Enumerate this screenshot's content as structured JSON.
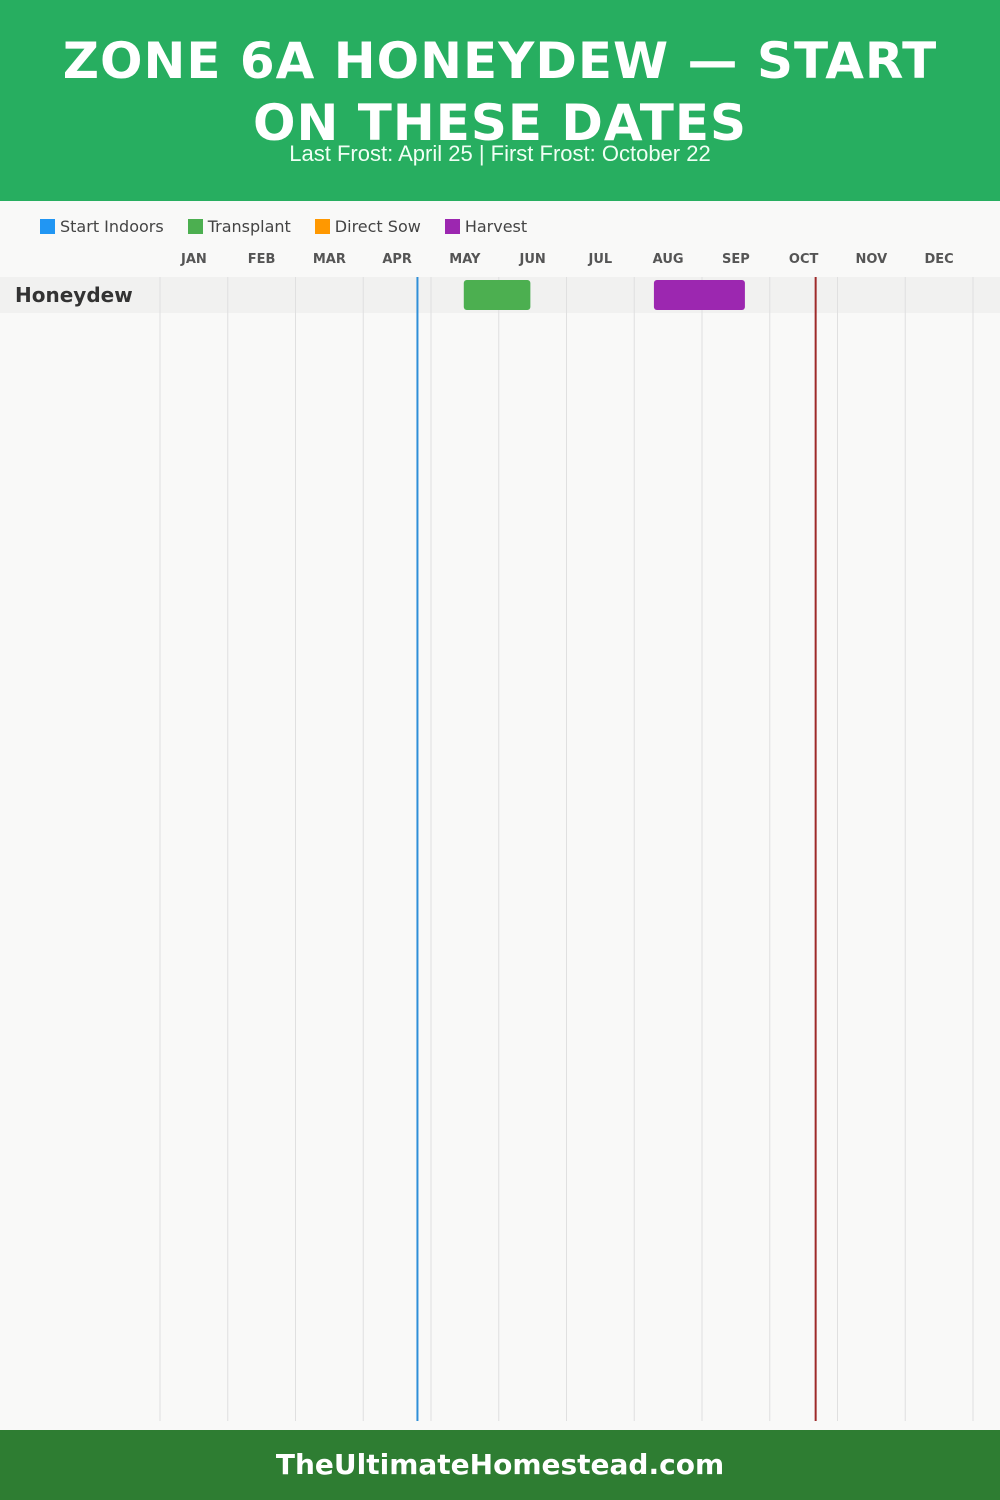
{
  "header": {
    "title": "Zone 6A Honeydew — Start on These Dates",
    "subtitle": "Last Frost: April 25 | First Frost: October 22",
    "background_color": "#27ae60"
  },
  "legend": [
    {
      "label": "Start Indoors",
      "color": "#2196f3"
    },
    {
      "label": "Transplant",
      "color": "#4caf50"
    },
    {
      "label": "Direct Sow",
      "color": "#ff9800"
    },
    {
      "label": "Harvest",
      "color": "#9c27b0"
    }
  ],
  "chart_data": {
    "type": "gantt",
    "months": [
      "JAN",
      "FEB",
      "MAR",
      "APR",
      "MAY",
      "JUN",
      "JUL",
      "AUG",
      "SEP",
      "OCT",
      "NOV",
      "DEC"
    ],
    "rows": [
      {
        "crop": "Honeydew",
        "bars": [
          {
            "activity": "Transplant",
            "start": "May 16",
            "end": "Jun 15",
            "color": "#4caf50"
          },
          {
            "activity": "Harvest",
            "start": "Aug 10",
            "end": "Sep 20",
            "color": "#9c27b0"
          }
        ]
      }
    ],
    "markers": [
      {
        "label": "Last Frost",
        "date": "Apr 25",
        "color": "#2f8fd8"
      },
      {
        "label": "First Frost",
        "date": "Oct 22",
        "color": "#9e2a2a"
      }
    ],
    "grid": true
  },
  "footer": {
    "text": "TheUltimateHomestead.com",
    "background_color": "#2e7d32"
  }
}
